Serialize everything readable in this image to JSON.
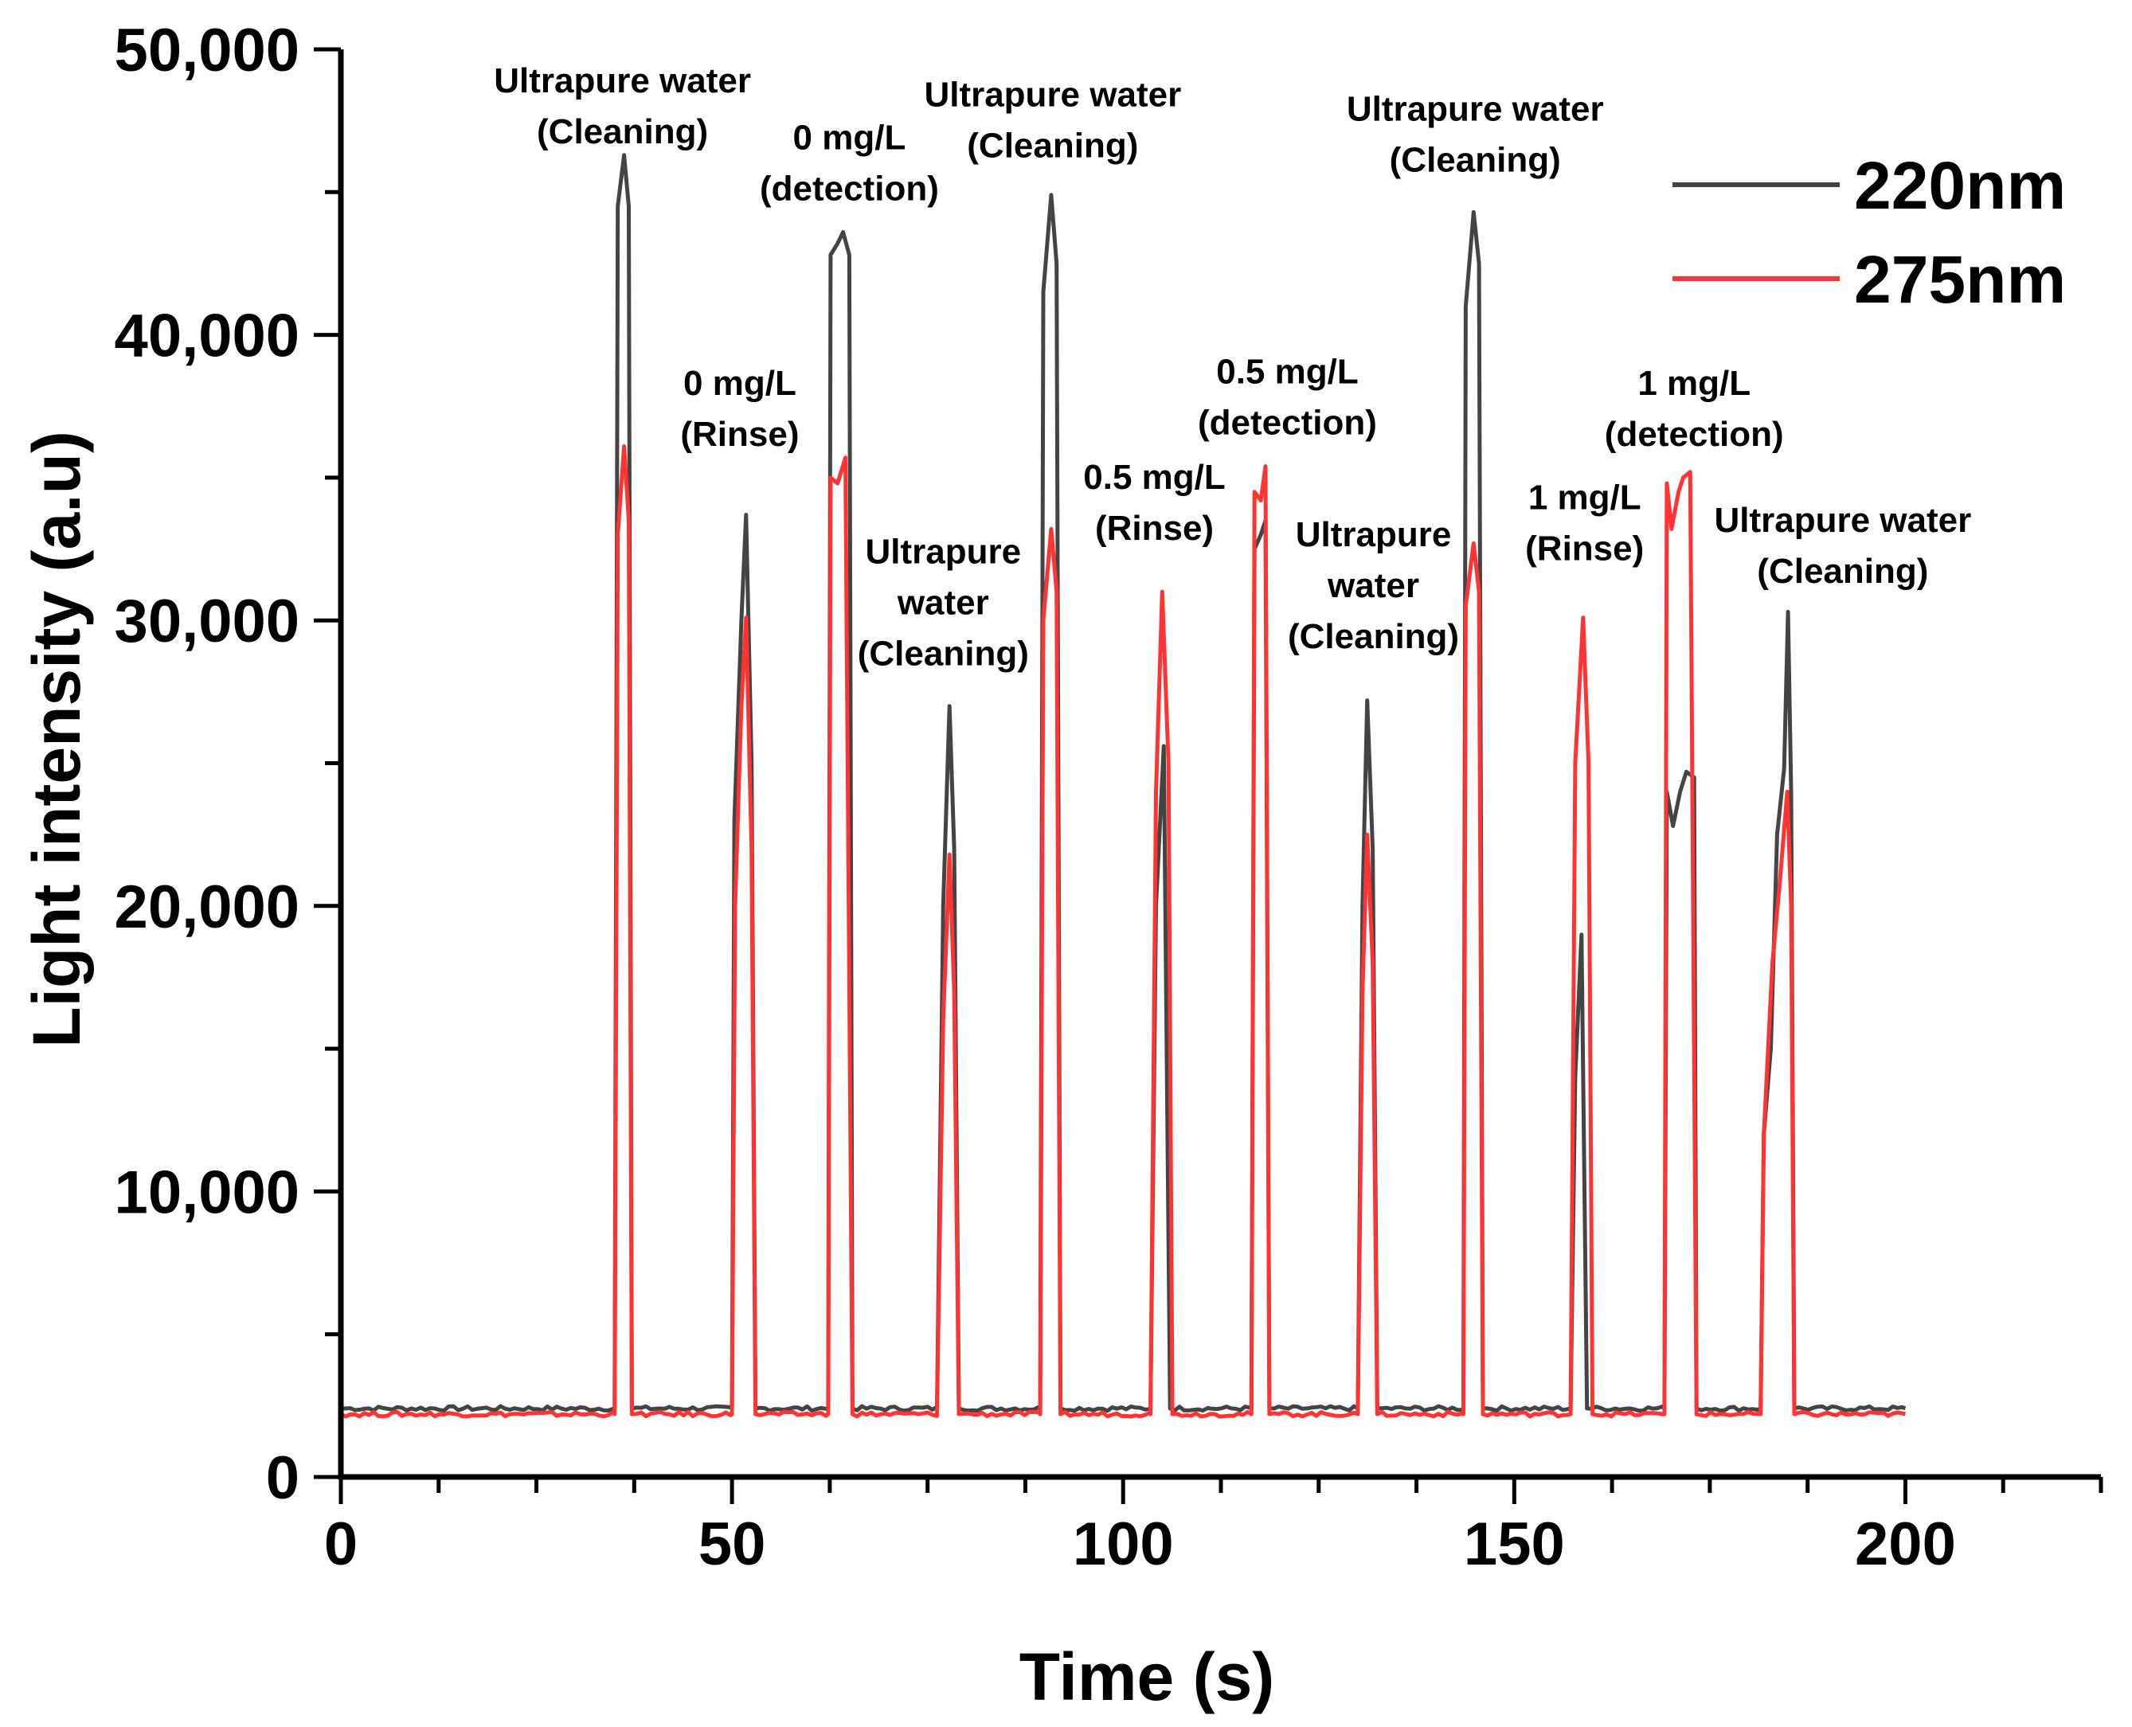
{
  "chart_data": {
    "type": "line",
    "title": "",
    "xlabel": "Time  (s)",
    "ylabel": "Light intensity (a.u)",
    "xlim": [
      0,
      225
    ],
    "ylim": [
      0,
      50000
    ],
    "x_ticks": [
      0,
      50,
      100,
      150,
      200
    ],
    "x_tick_labels": [
      "0",
      "50",
      "100",
      "150",
      "200"
    ],
    "y_ticks": [
      0,
      10000,
      20000,
      30000,
      40000,
      50000
    ],
    "y_tick_labels": [
      "0",
      "10,000",
      "20,000",
      "30,000",
      "40,000",
      "50,000"
    ],
    "legend_position": "top-right",
    "series": [
      {
        "name": "220nm",
        "color": "#444444",
        "points": [
          [
            0,
            2400
          ],
          [
            35.0,
            2400
          ],
          [
            35.4,
            44500
          ],
          [
            36.2,
            46300
          ],
          [
            36.8,
            44500
          ],
          [
            37.2,
            2400
          ],
          [
            50.0,
            2400
          ],
          [
            50.3,
            23000
          ],
          [
            51.2,
            30000
          ],
          [
            51.8,
            33700
          ],
          [
            52.5,
            25000
          ],
          [
            53.0,
            2400
          ],
          [
            62.3,
            2400
          ],
          [
            62.6,
            42800
          ],
          [
            63.5,
            43200
          ],
          [
            64.2,
            43600
          ],
          [
            65.0,
            42800
          ],
          [
            65.4,
            2400
          ],
          [
            76.2,
            2400
          ],
          [
            77.0,
            20000
          ],
          [
            77.8,
            27000
          ],
          [
            78.4,
            22000
          ],
          [
            79.0,
            2400
          ],
          [
            89.4,
            2400
          ],
          [
            89.8,
            41500
          ],
          [
            90.8,
            44900
          ],
          [
            91.5,
            42500
          ],
          [
            92.0,
            2400
          ],
          [
            103.5,
            2400
          ],
          [
            104.2,
            20000
          ],
          [
            105.2,
            25600
          ],
          [
            106.0,
            2400
          ],
          [
            116.4,
            2400
          ],
          [
            116.8,
            32500
          ],
          [
            117.6,
            33000
          ],
          [
            118.2,
            33500
          ],
          [
            118.7,
            2400
          ],
          [
            130.0,
            2400
          ],
          [
            130.6,
            20000
          ],
          [
            131.2,
            27200
          ],
          [
            131.9,
            22000
          ],
          [
            132.5,
            2400
          ],
          [
            143.5,
            2400
          ],
          [
            143.8,
            41000
          ],
          [
            144.8,
            44300
          ],
          [
            145.5,
            42500
          ],
          [
            146.0,
            2400
          ],
          [
            157.2,
            2400
          ],
          [
            157.8,
            14000
          ],
          [
            158.6,
            19000
          ],
          [
            159.3,
            2400
          ],
          [
            169.2,
            2400
          ],
          [
            169.5,
            24000
          ],
          [
            170.3,
            22800
          ],
          [
            171.2,
            24000
          ],
          [
            172.0,
            24700
          ],
          [
            173.0,
            24500
          ],
          [
            173.3,
            2400
          ],
          [
            181.5,
            2400
          ],
          [
            181.9,
            12000
          ],
          [
            182.8,
            15000
          ],
          [
            183.6,
            22500
          ],
          [
            184.5,
            24800
          ],
          [
            185.0,
            30300
          ],
          [
            185.4,
            24000
          ],
          [
            185.8,
            2400
          ],
          [
            200.0,
            2400
          ]
        ]
      },
      {
        "name": "275nm",
        "color": "#ff3333",
        "points": [
          [
            0,
            2200
          ],
          [
            35.0,
            2200
          ],
          [
            35.4,
            33000
          ],
          [
            36.2,
            36100
          ],
          [
            36.8,
            33500
          ],
          [
            37.2,
            2200
          ],
          [
            50.0,
            2200
          ],
          [
            50.4,
            20000
          ],
          [
            51.2,
            27000
          ],
          [
            51.8,
            30100
          ],
          [
            52.5,
            22000
          ],
          [
            53.0,
            2200
          ],
          [
            62.3,
            2200
          ],
          [
            62.6,
            35000
          ],
          [
            63.5,
            34800
          ],
          [
            64.5,
            35700
          ],
          [
            65.4,
            2200
          ],
          [
            76.2,
            2200
          ],
          [
            77.0,
            16000
          ],
          [
            77.8,
            21800
          ],
          [
            78.4,
            17000
          ],
          [
            79.0,
            2200
          ],
          [
            89.4,
            2200
          ],
          [
            89.8,
            30000
          ],
          [
            90.8,
            33200
          ],
          [
            91.5,
            31000
          ],
          [
            92.0,
            2200
          ],
          [
            103.5,
            2200
          ],
          [
            104.2,
            24000
          ],
          [
            105.0,
            31000
          ],
          [
            105.8,
            25000
          ],
          [
            106.3,
            2200
          ],
          [
            116.4,
            2200
          ],
          [
            116.8,
            34500
          ],
          [
            117.6,
            34200
          ],
          [
            118.2,
            35400
          ],
          [
            118.7,
            2200
          ],
          [
            130.0,
            2200
          ],
          [
            130.6,
            17000
          ],
          [
            131.2,
            22500
          ],
          [
            131.9,
            18000
          ],
          [
            132.5,
            2200
          ],
          [
            143.5,
            2200
          ],
          [
            143.8,
            30500
          ],
          [
            144.8,
            32700
          ],
          [
            145.5,
            31000
          ],
          [
            146.0,
            2200
          ],
          [
            157.2,
            2200
          ],
          [
            157.8,
            25000
          ],
          [
            158.8,
            30100
          ],
          [
            159.5,
            25000
          ],
          [
            160.0,
            2200
          ],
          [
            169.2,
            2200
          ],
          [
            169.5,
            34800
          ],
          [
            170.1,
            33200
          ],
          [
            171.0,
            34500
          ],
          [
            171.6,
            35000
          ],
          [
            172.5,
            35200
          ],
          [
            173.3,
            2200
          ],
          [
            181.5,
            2200
          ],
          [
            181.9,
            12000
          ],
          [
            183.0,
            18000
          ],
          [
            184.0,
            21000
          ],
          [
            184.9,
            24000
          ],
          [
            185.4,
            20000
          ],
          [
            185.8,
            2200
          ],
          [
            200.0,
            2200
          ]
        ]
      }
    ],
    "annotations": [
      {
        "lines": [
          "Ultrapure water",
          "(Cleaning)"
        ],
        "x": 36,
        "y": 48500
      },
      {
        "lines": [
          "0 mg/L",
          "(Rinse)"
        ],
        "x": 51,
        "y": 37900
      },
      {
        "lines": [
          "0 mg/L",
          "(detection)"
        ],
        "x": 65,
        "y": 46500
      },
      {
        "lines": [
          "Ultrapure",
          "water",
          "(Cleaning)"
        ],
        "x": 77,
        "y": 32000
      },
      {
        "lines": [
          "Ultrapure water",
          "(Cleaning)"
        ],
        "x": 91,
        "y": 48000
      },
      {
        "lines": [
          "0.5 mg/L",
          "(Rinse)"
        ],
        "x": 104,
        "y": 34600
      },
      {
        "lines": [
          "0.5 mg/L",
          "(detection)"
        ],
        "x": 121,
        "y": 38300
      },
      {
        "lines": [
          "Ultrapure",
          "water",
          "(Cleaning)"
        ],
        "x": 132,
        "y": 32600
      },
      {
        "lines": [
          "Ultrapure water",
          "(Cleaning)"
        ],
        "x": 145,
        "y": 47500
      },
      {
        "lines": [
          "1 mg/L",
          "(Rinse)"
        ],
        "x": 159,
        "y": 33900
      },
      {
        "lines": [
          "1 mg/L",
          "(detection)"
        ],
        "x": 173,
        "y": 37900
      },
      {
        "lines": [
          "Ultrapure water",
          "(Cleaning)"
        ],
        "x": 192,
        "y": 33100
      }
    ]
  }
}
